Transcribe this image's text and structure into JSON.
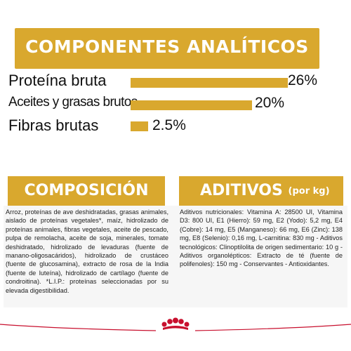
{
  "analytics": {
    "title": "COMPONENTES ANALÍTICOS",
    "rows": [
      {
        "label": "Proteína bruta",
        "value": "26%",
        "level": 26
      },
      {
        "label": "Aceites y grasas brutos",
        "value": "20%",
        "level": 20
      },
      {
        "label": "Fibras brutas",
        "value": "2.5%",
        "level": 2.5
      }
    ]
  },
  "composition": {
    "title": "COMPOSICIÓN",
    "text": "Arroz, proteínas de ave deshidratadas, grasas animales, aislado de proteínas vegetales*, maíz, hidrolizado de proteínas animales, fibras vegetales, aceite de pescado, pulpa de remolacha, aceite de soja, minerales, tomate deshidratado, hidrolizado de levaduras (fuente de manano-oligosacáridos), hidrolizado de crustáceo (fuente de glucosamina), extracto de rosa de la India (fuente de luteína), hidrolizado de cartílago (fuente de condroitina). *L.I.P.: proteínas seleccionadas por su elevada digestibilidad."
  },
  "additives": {
    "title": "ADITIVOS",
    "subtitle": "(por kg)",
    "text": "Aditivos nutricionales: Vitamina A: 28500 UI, Vitamina D3: 800 UI, E1 (Hierro): 59 mg, E2 (Yodo): 5,2 mg, E4 (Cobre): 14 mg, E5 (Manganeso): 66 mg, E6 (Zinc): 138 mg, E8 (Selenio): 0,16 mg, L-carnitina: 830 mg - Aditivos tecnológicos: Clinoptilolita de origen sedimentario: 10 g - Aditivos organolépticos: Extracto de té (fuente de polifenoles): 150 mg - Conservantes - Antioxidantes."
  },
  "colors": {
    "accent": "#d9a82e",
    "brand_red": "#c8102e"
  },
  "logo": {
    "icon": "royal-canin-crown-icon"
  }
}
